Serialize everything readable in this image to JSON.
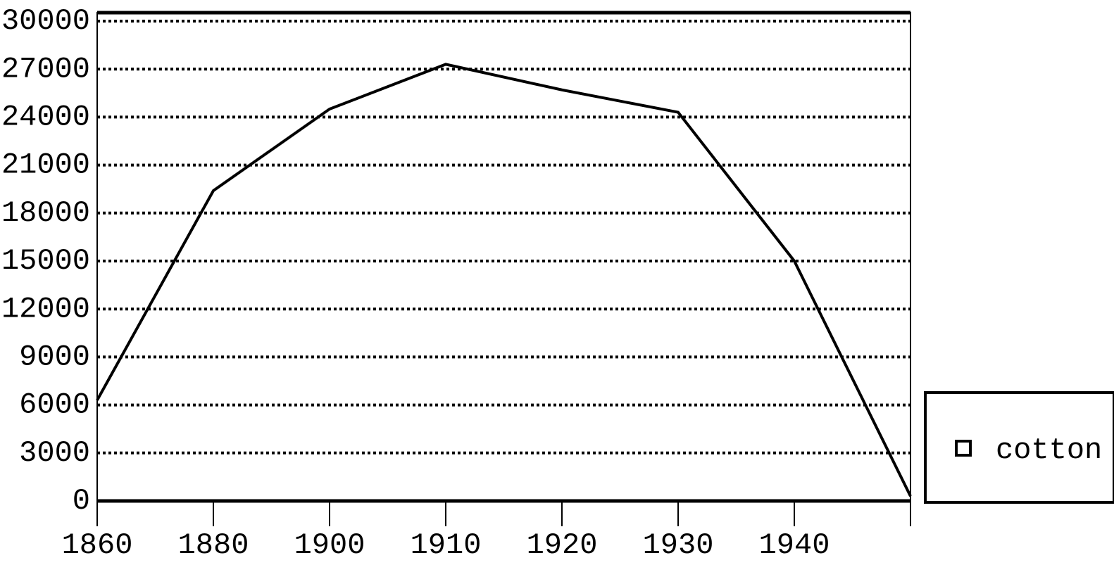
{
  "chart_data": {
    "type": "line",
    "categories": [
      "1860",
      "1880",
      "1900",
      "1910",
      "1920",
      "1930",
      "1940",
      null
    ],
    "series": [
      {
        "name": "cotton",
        "color": "#000000",
        "values": [
          6300,
          19400,
          24500,
          27300,
          25700,
          24300,
          15000,
          300
        ]
      }
    ],
    "ylim": [
      0,
      30000
    ],
    "yticks": [
      0,
      3000,
      6000,
      9000,
      12000,
      15000,
      18000,
      21000,
      24000,
      27000,
      30000
    ],
    "grid": true,
    "legend": "right"
  }
}
